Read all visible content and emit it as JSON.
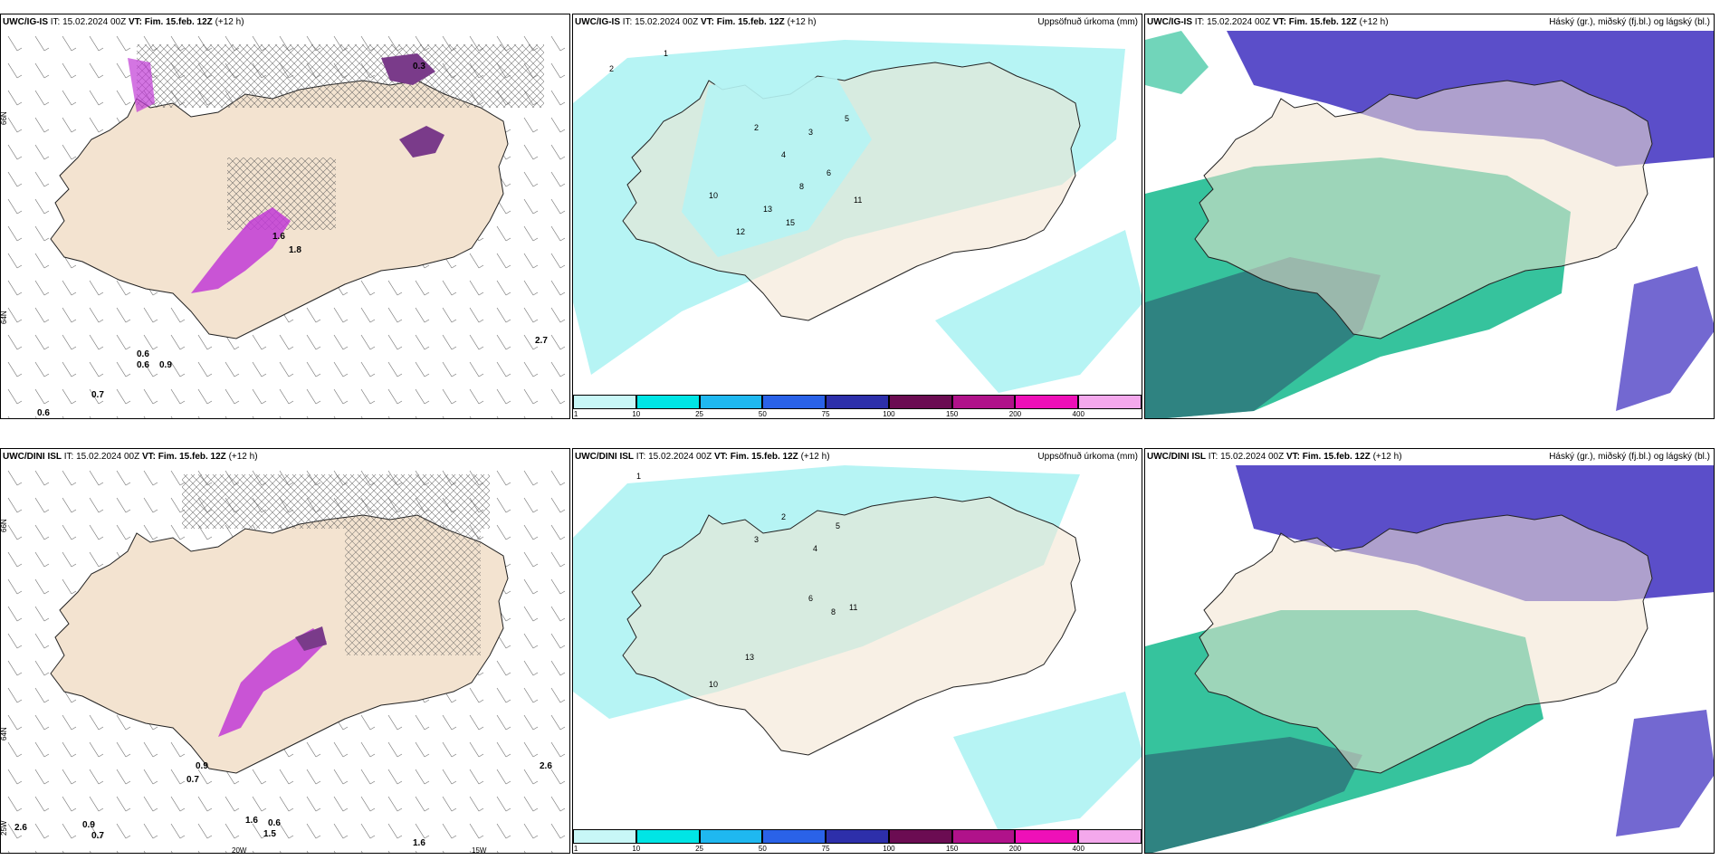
{
  "colors": {
    "land": "#f3e3d0",
    "precip_light": "#b6f4f4",
    "precip_mid": "#00e5e5",
    "magenta": "#c13bd6",
    "purple_dark": "#7a3b8a",
    "high_cloud": "#5b4ec9",
    "mid_cloud": "#13b98c",
    "low_cloud": "#2e6e78"
  },
  "panels": {
    "p1": {
      "model": "UWC/IG-IS",
      "it_label": "IT:",
      "it_value": "15.02.2024 00Z",
      "vt_label": "VT:",
      "vt_value": "Fim. 15.feb. 12Z",
      "lead": "(+12 h)",
      "right": ""
    },
    "p2": {
      "model": "UWC/IG-IS",
      "it_label": "IT:",
      "it_value": "15.02.2024 00Z",
      "vt_label": "VT:",
      "vt_value": "Fim. 15.feb. 12Z",
      "lead": "(+12 h)",
      "right": "Uppsöfnuð úrkoma (mm)"
    },
    "p3": {
      "model": "UWC/IG-IS",
      "it_label": "IT:",
      "it_value": "15.02.2024 00Z",
      "vt_label": "VT:",
      "vt_value": "Fim. 15.feb. 12Z",
      "lead": "(+12 h)",
      "right": "Háský (gr.), miðský (fj.bl.) og lágský (bl.)"
    },
    "p4": {
      "model": "UWC/DINI ISL",
      "it_label": "IT:",
      "it_value": "15.02.2024 00Z",
      "vt_label": "VT:",
      "vt_value": "Fim. 15.feb. 12Z",
      "lead": "(+12 h)",
      "right": ""
    },
    "p5": {
      "model": "UWC/DINI ISL",
      "it_label": "IT:",
      "it_value": "15.02.2024 00Z",
      "vt_label": "VT:",
      "vt_value": "Fim. 15.feb. 12Z",
      "lead": "(+12 h)",
      "right": "Uppsöfnuð úrkoma (mm)"
    },
    "p6": {
      "model": "UWC/DINI ISL",
      "it_label": "IT:",
      "it_value": "15.02.2024 00Z",
      "vt_label": "VT:",
      "vt_value": "Fim. 15.feb. 12Z",
      "lead": "(+12 h)",
      "right": "Háský (gr.), miðský (fj.bl.) og lágský (bl.)"
    }
  },
  "axis_labels": {
    "lat_upper": "66N",
    "lat_lower": "64N",
    "lon_a": "20W",
    "lon_b": "15W",
    "lon_c": "25W"
  },
  "colorbar": {
    "colors": [
      "#c8f7f7",
      "#00e5e5",
      "#1fb8f0",
      "#2a62e8",
      "#2d2faa",
      "#6b0c52",
      "#b0128a",
      "#ee10b8",
      "#f4a8ec"
    ],
    "labels": [
      "1",
      "10",
      "25",
      "50",
      "75",
      "100",
      "150",
      "200",
      "400"
    ]
  },
  "top_values": {
    "p1_points": [
      "0.3",
      "0.6",
      "0.6",
      "0.9",
      "2.7",
      "0.7",
      "0.6",
      "1.6",
      "1.8"
    ],
    "p2_points": [
      "1",
      "2",
      "2",
      "3",
      "4",
      "5",
      "6",
      "8",
      "10",
      "11",
      "12",
      "13",
      "15"
    ]
  },
  "bottom_values": {
    "p4_points": [
      "0.9",
      "0.7",
      "2.6",
      "1.6",
      "0.6",
      "1.5",
      "1.6",
      "0.9",
      "0.7",
      "2.6"
    ],
    "p5_points": [
      "1",
      "2",
      "3",
      "4",
      "5",
      "6",
      "8",
      "10",
      "11",
      "13"
    ]
  }
}
